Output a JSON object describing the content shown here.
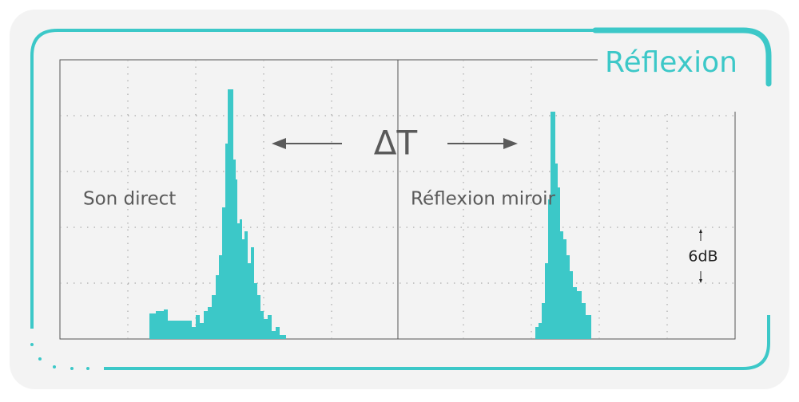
{
  "title": "Réflexion",
  "labels": {
    "direct": "Son direct",
    "mirror": "Réflexion miroir",
    "delta": "ΔT",
    "scale": "6dB"
  }
}
